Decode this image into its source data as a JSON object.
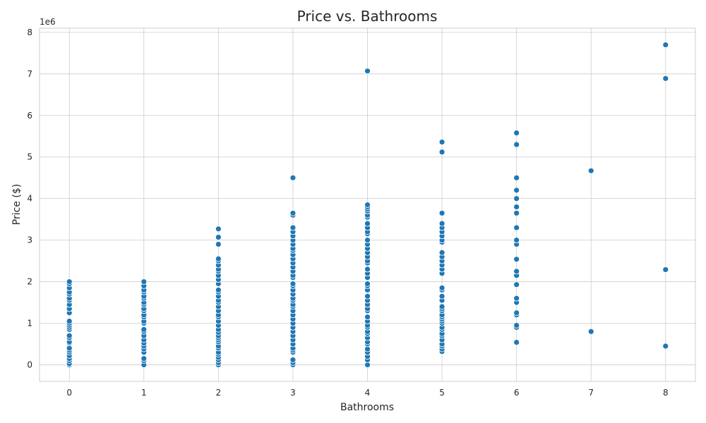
{
  "chart_data": {
    "type": "scatter",
    "title": "Price vs. Bathrooms",
    "xlabel": "Bathrooms",
    "ylabel": "Price ($)",
    "y_offset_label": "1e6",
    "y_scale": 1000000,
    "xlim": [
      -0.4,
      8.4
    ],
    "ylim": [
      -400000,
      8100000
    ],
    "xticks": [
      0,
      1,
      2,
      3,
      4,
      5,
      6,
      7,
      8
    ],
    "xtick_labels": [
      "0",
      "1",
      "2",
      "3",
      "4",
      "5",
      "6",
      "7",
      "8"
    ],
    "yticks": [
      0,
      1000000,
      2000000,
      3000000,
      4000000,
      5000000,
      6000000,
      7000000,
      8000000
    ],
    "ytick_labels": [
      "0",
      "1",
      "2",
      "3",
      "4",
      "5",
      "6",
      "7",
      "8"
    ],
    "grid": true,
    "marker_color": "#1f77b4",
    "series": [
      {
        "points": [
          [
            0,
            0
          ],
          [
            0,
            30000
          ],
          [
            0,
            100000
          ],
          [
            0,
            150000
          ],
          [
            0,
            220000
          ],
          [
            0,
            300000
          ],
          [
            0,
            350000
          ],
          [
            0,
            400000
          ],
          [
            0,
            520000
          ],
          [
            0,
            550000
          ],
          [
            0,
            650000
          ],
          [
            0,
            700000
          ],
          [
            0,
            850000
          ],
          [
            0,
            900000
          ],
          [
            0,
            950000
          ],
          [
            0,
            1000000
          ],
          [
            0,
            1050000
          ],
          [
            0,
            1250000
          ],
          [
            0,
            1350000
          ],
          [
            0,
            1450000
          ],
          [
            0,
            1550000
          ],
          [
            0,
            1600000
          ],
          [
            0,
            1700000
          ],
          [
            0,
            1750000
          ],
          [
            0,
            1850000
          ],
          [
            0,
            1950000
          ],
          [
            0,
            2000000
          ],
          [
            1,
            0
          ],
          [
            1,
            100000
          ],
          [
            1,
            150000
          ],
          [
            1,
            300000
          ],
          [
            1,
            380000
          ],
          [
            1,
            450000
          ],
          [
            1,
            520000
          ],
          [
            1,
            600000
          ],
          [
            1,
            700000
          ],
          [
            1,
            800000
          ],
          [
            1,
            850000
          ],
          [
            1,
            1000000
          ],
          [
            1,
            1050000
          ],
          [
            1,
            1150000
          ],
          [
            1,
            1200000
          ],
          [
            1,
            1300000
          ],
          [
            1,
            1350000
          ],
          [
            1,
            1450000
          ],
          [
            1,
            1500000
          ],
          [
            1,
            1600000
          ],
          [
            1,
            1650000
          ],
          [
            1,
            1750000
          ],
          [
            1,
            1800000
          ],
          [
            1,
            1900000
          ],
          [
            1,
            2000000
          ],
          [
            2,
            0
          ],
          [
            2,
            50000
          ],
          [
            2,
            120000
          ],
          [
            2,
            180000
          ],
          [
            2,
            250000
          ],
          [
            2,
            300000
          ],
          [
            2,
            400000
          ],
          [
            2,
            450000
          ],
          [
            2,
            550000
          ],
          [
            2,
            600000
          ],
          [
            2,
            650000
          ],
          [
            2,
            700000
          ],
          [
            2,
            780000
          ],
          [
            2,
            850000
          ],
          [
            2,
            950000
          ],
          [
            2,
            1050000
          ],
          [
            2,
            1150000
          ],
          [
            2,
            1200000
          ],
          [
            2,
            1300000
          ],
          [
            2,
            1400000
          ],
          [
            2,
            1500000
          ],
          [
            2,
            1550000
          ],
          [
            2,
            1650000
          ],
          [
            2,
            1750000
          ],
          [
            2,
            1800000
          ],
          [
            2,
            1950000
          ],
          [
            2,
            2050000
          ],
          [
            2,
            2150000
          ],
          [
            2,
            2250000
          ],
          [
            2,
            2300000
          ],
          [
            2,
            2400000
          ],
          [
            2,
            2500000
          ],
          [
            2,
            2550000
          ],
          [
            2,
            2900000
          ],
          [
            2,
            3070000
          ],
          [
            2,
            3270000
          ],
          [
            3,
            0
          ],
          [
            3,
            50000
          ],
          [
            3,
            120000
          ],
          [
            3,
            300000
          ],
          [
            3,
            350000
          ],
          [
            3,
            400000
          ],
          [
            3,
            500000
          ],
          [
            3,
            600000
          ],
          [
            3,
            700000
          ],
          [
            3,
            800000
          ],
          [
            3,
            900000
          ],
          [
            3,
            1000000
          ],
          [
            3,
            1100000
          ],
          [
            3,
            1200000
          ],
          [
            3,
            1300000
          ],
          [
            3,
            1400000
          ],
          [
            3,
            1450000
          ],
          [
            3,
            1550000
          ],
          [
            3,
            1600000
          ],
          [
            3,
            1700000
          ],
          [
            3,
            1800000
          ],
          [
            3,
            1900000
          ],
          [
            3,
            1950000
          ],
          [
            3,
            2100000
          ],
          [
            3,
            2150000
          ],
          [
            3,
            2250000
          ],
          [
            3,
            2350000
          ],
          [
            3,
            2450000
          ],
          [
            3,
            2550000
          ],
          [
            3,
            2650000
          ],
          [
            3,
            2750000
          ],
          [
            3,
            2800000
          ],
          [
            3,
            2900000
          ],
          [
            3,
            3000000
          ],
          [
            3,
            3100000
          ],
          [
            3,
            3200000
          ],
          [
            3,
            3300000
          ],
          [
            3,
            3600000
          ],
          [
            3,
            3650000
          ],
          [
            3,
            4500000
          ],
          [
            4,
            0
          ],
          [
            4,
            120000
          ],
          [
            4,
            200000
          ],
          [
            4,
            300000
          ],
          [
            4,
            380000
          ],
          [
            4,
            500000
          ],
          [
            4,
            550000
          ],
          [
            4,
            650000
          ],
          [
            4,
            750000
          ],
          [
            4,
            800000
          ],
          [
            4,
            900000
          ],
          [
            4,
            950000
          ],
          [
            4,
            1050000
          ],
          [
            4,
            1150000
          ],
          [
            4,
            1300000
          ],
          [
            4,
            1350000
          ],
          [
            4,
            1450000
          ],
          [
            4,
            1550000
          ],
          [
            4,
            1650000
          ],
          [
            4,
            1800000
          ],
          [
            4,
            1900000
          ],
          [
            4,
            1950000
          ],
          [
            4,
            2100000
          ],
          [
            4,
            2200000
          ],
          [
            4,
            2300000
          ],
          [
            4,
            2450000
          ],
          [
            4,
            2500000
          ],
          [
            4,
            2600000
          ],
          [
            4,
            2700000
          ],
          [
            4,
            2800000
          ],
          [
            4,
            2900000
          ],
          [
            4,
            3000000
          ],
          [
            4,
            3150000
          ],
          [
            4,
            3200000
          ],
          [
            4,
            3300000
          ],
          [
            4,
            3400000
          ],
          [
            4,
            3550000
          ],
          [
            4,
            3600000
          ],
          [
            4,
            3700000
          ],
          [
            4,
            3750000
          ],
          [
            4,
            3800000
          ],
          [
            4,
            3850000
          ],
          [
            4,
            7070000
          ],
          [
            5,
            320000
          ],
          [
            5,
            380000
          ],
          [
            5,
            450000
          ],
          [
            5,
            500000
          ],
          [
            5,
            600000
          ],
          [
            5,
            700000
          ],
          [
            5,
            750000
          ],
          [
            5,
            850000
          ],
          [
            5,
            900000
          ],
          [
            5,
            1000000
          ],
          [
            5,
            1050000
          ],
          [
            5,
            1100000
          ],
          [
            5,
            1150000
          ],
          [
            5,
            1200000
          ],
          [
            5,
            1300000
          ],
          [
            5,
            1350000
          ],
          [
            5,
            1400000
          ],
          [
            5,
            1550000
          ],
          [
            5,
            1650000
          ],
          [
            5,
            1800000
          ],
          [
            5,
            1850000
          ],
          [
            5,
            2200000
          ],
          [
            5,
            2300000
          ],
          [
            5,
            2400000
          ],
          [
            5,
            2500000
          ],
          [
            5,
            2600000
          ],
          [
            5,
            2700000
          ],
          [
            5,
            2950000
          ],
          [
            5,
            3000000
          ],
          [
            5,
            3100000
          ],
          [
            5,
            3200000
          ],
          [
            5,
            3300000
          ],
          [
            5,
            3400000
          ],
          [
            5,
            3650000
          ],
          [
            5,
            5120000
          ],
          [
            5,
            5360000
          ],
          [
            6,
            540000
          ],
          [
            6,
            900000
          ],
          [
            6,
            950000
          ],
          [
            6,
            1200000
          ],
          [
            6,
            1250000
          ],
          [
            6,
            1500000
          ],
          [
            6,
            1600000
          ],
          [
            6,
            1930000
          ],
          [
            6,
            2150000
          ],
          [
            6,
            2250000
          ],
          [
            6,
            2540000
          ],
          [
            6,
            2900000
          ],
          [
            6,
            3000000
          ],
          [
            6,
            3300000
          ],
          [
            6,
            3650000
          ],
          [
            6,
            3800000
          ],
          [
            6,
            4000000
          ],
          [
            6,
            4200000
          ],
          [
            6,
            4500000
          ],
          [
            6,
            5300000
          ],
          [
            6,
            5580000
          ],
          [
            7,
            800000
          ],
          [
            7,
            4670000
          ],
          [
            8,
            450000
          ],
          [
            8,
            2290000
          ],
          [
            8,
            6890000
          ],
          [
            8,
            7700000
          ]
        ]
      }
    ]
  }
}
